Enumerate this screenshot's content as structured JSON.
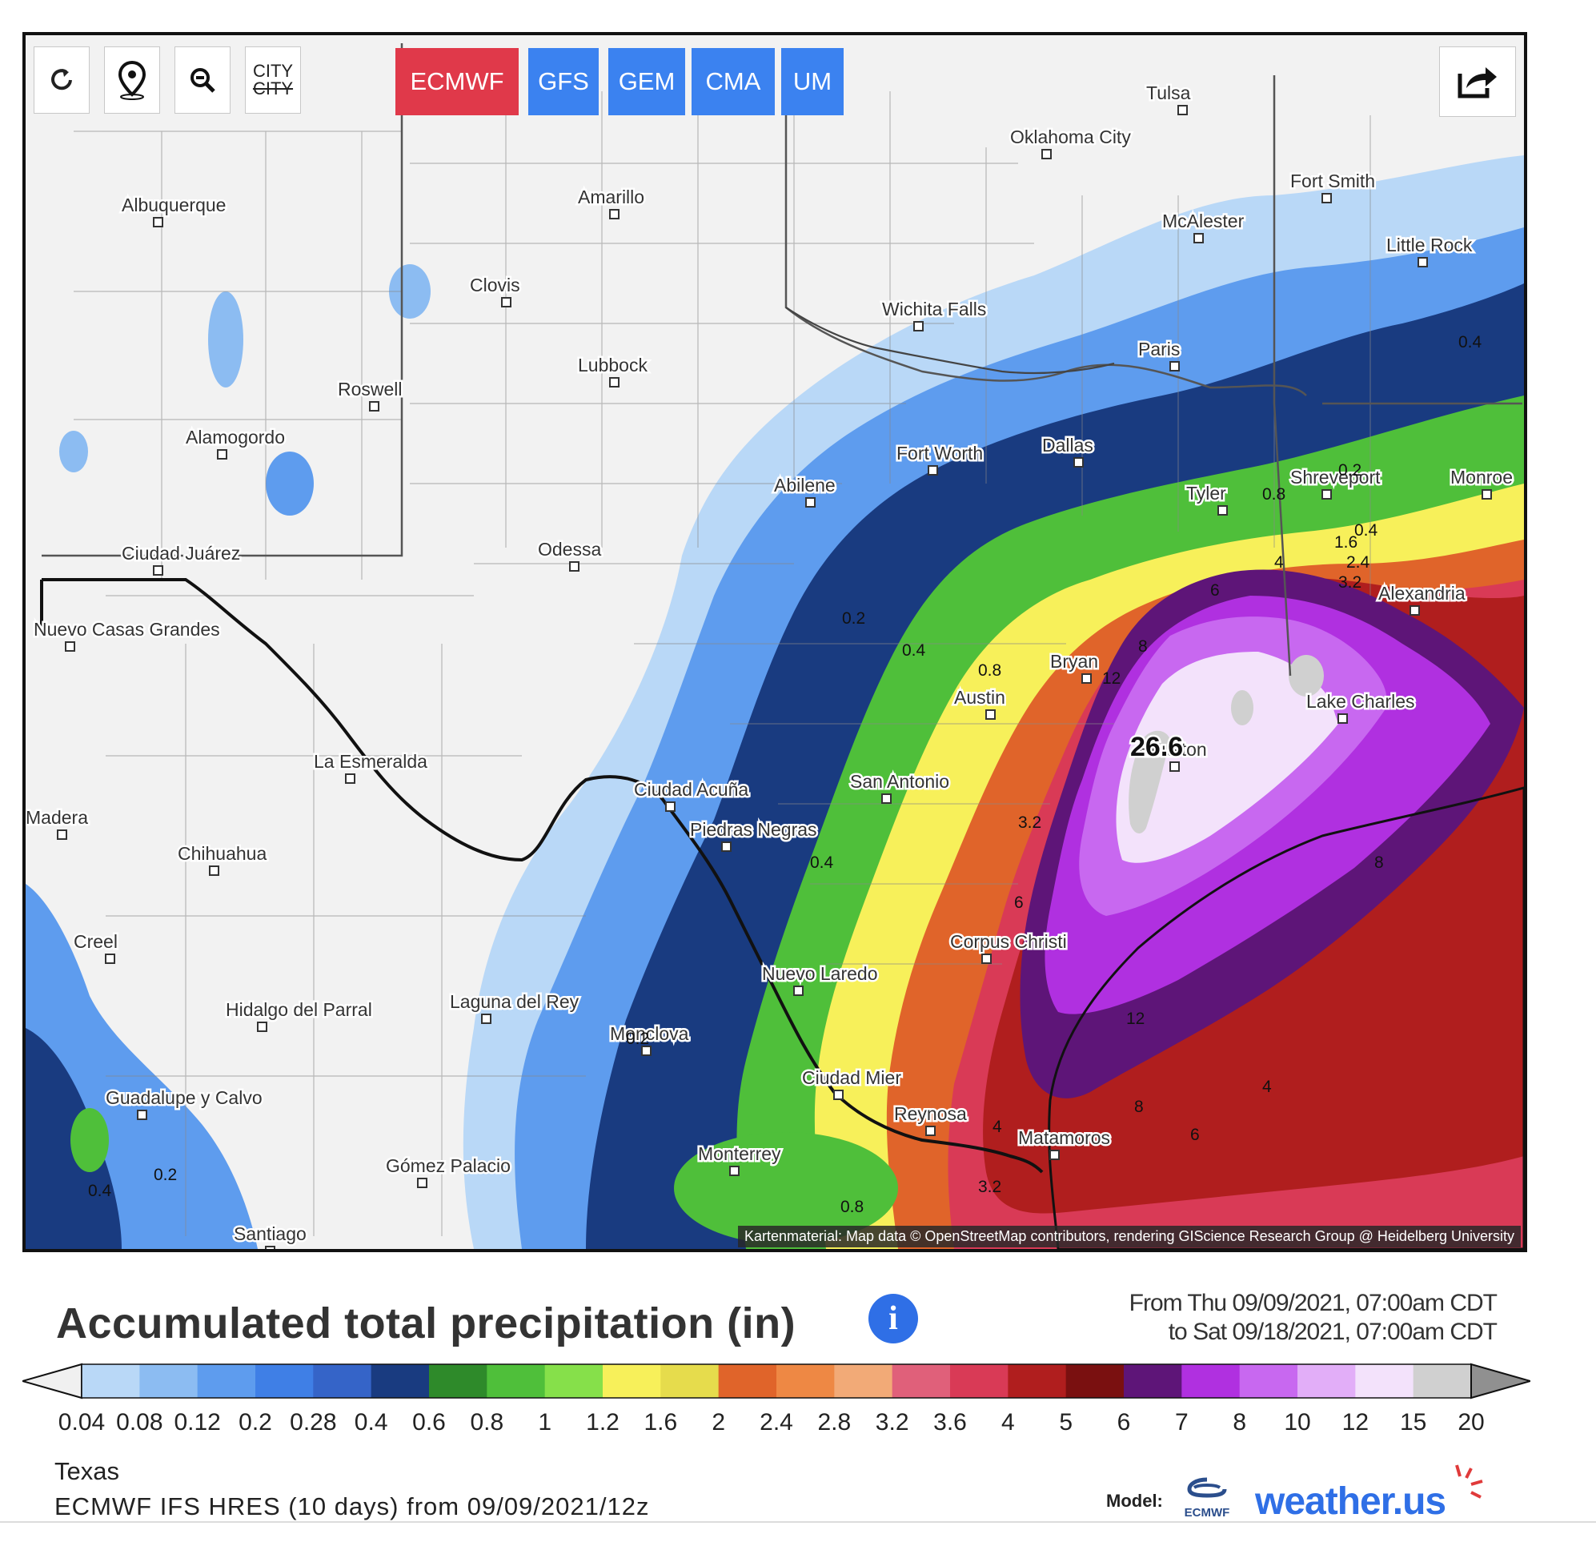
{
  "toolbar": {
    "city_label_top": "CITY",
    "city_label_bottom": "CITY",
    "models": [
      {
        "label": "ECMWF",
        "color": "#e0394a",
        "active": true
      },
      {
        "label": "GFS",
        "color": "#3b82f0",
        "active": false
      },
      {
        "label": "GEM",
        "color": "#3b82f0",
        "active": false
      },
      {
        "label": "CMA",
        "color": "#3b82f0",
        "active": false
      },
      {
        "label": "UM",
        "color": "#3b82f0",
        "active": false
      }
    ]
  },
  "map": {
    "attribution": "Kartenmaterial: Map data © OpenStreetMap contributors, rendering GIScience Research Group @ Heidelberg University",
    "cities": [
      "Tulsa",
      "Oklahoma City",
      "Fort Smith",
      "McAlester",
      "Little Rock",
      "Albuquerque",
      "Amarillo",
      "Clovis",
      "Wichita Falls",
      "Paris",
      "Lubbock",
      "Roswell",
      "Alamogordo",
      "Fort Worth",
      "Dallas",
      "Shreveport",
      "Monroe",
      "Tyler",
      "Abilene",
      "Odessa",
      "Ciudad Juárez",
      "Alexandria",
      "Nuevo Casas Grandes",
      "Bryan",
      "Austin",
      "Lake Charles",
      "Houston",
      "La Esmeralda",
      "Ciudad Acuña",
      "San Antonio",
      "Piedras Negras",
      "Chihuahua",
      "Madera",
      "Creel",
      "Corpus Christi",
      "Nuevo Laredo",
      "Hidalgo del Parral",
      "Laguna del Rey",
      "Monclova",
      "Guadalupe y Calvo",
      "Ciudad Mier",
      "Reynosa",
      "Matamoros",
      "Monterrey",
      "Gómez Palacio",
      "Santiago"
    ],
    "peak_value": "26.6",
    "isoline_labels": [
      "0.4",
      "0.2",
      "0.4",
      "0.8",
      "1.6",
      "2.4",
      "3.2",
      "4",
      "6",
      "8",
      "12",
      "0.2",
      "0.4",
      "0.8",
      "3.2",
      "6",
      "8",
      "12",
      "4",
      "8",
      "6",
      "4",
      "0.2",
      "0.4",
      "0.8",
      "3.2",
      "0.4",
      "0.2"
    ]
  },
  "header": {
    "title": "Accumulated total precipitation (in)",
    "info_glyph": "i",
    "from": "From Thu 09/09/2021, 07:00am CDT",
    "to": "to Sat 09/18/2021, 07:00am CDT"
  },
  "legend": {
    "values": [
      "0.04",
      "0.08",
      "0.12",
      "0.2",
      "0.28",
      "0.4",
      "0.6",
      "0.8",
      "1",
      "1.2",
      "1.6",
      "2",
      "2.4",
      "2.8",
      "3.2",
      "3.6",
      "4",
      "5",
      "6",
      "7",
      "8",
      "10",
      "12",
      "15",
      "20"
    ],
    "colors": [
      "#b9d8f7",
      "#8cbcf2",
      "#5e9cee",
      "#3f7fe6",
      "#3564c8",
      "#193b80",
      "#2e8a2a",
      "#4fbf3a",
      "#86e04a",
      "#f7f05a",
      "#e6dc4c",
      "#e0642a",
      "#ee8844",
      "#f2aa77",
      "#e0607a",
      "#d93a56",
      "#b01e1e",
      "#7a1010",
      "#5e1578",
      "#b030e0",
      "#c868f0",
      "#e2aef8",
      "#f3e2fb",
      "#d0d0d0"
    ],
    "low_arrow_color": "#f0f0f0",
    "high_arrow_color": "#909090"
  },
  "footer": {
    "region": "Texas",
    "model_description": "ECMWF IFS HRES (10 days) from 09/09/2021/12z",
    "model_label": "Model:",
    "ecmwf_logo_text": "ECMWF",
    "brand": "weather.us"
  }
}
